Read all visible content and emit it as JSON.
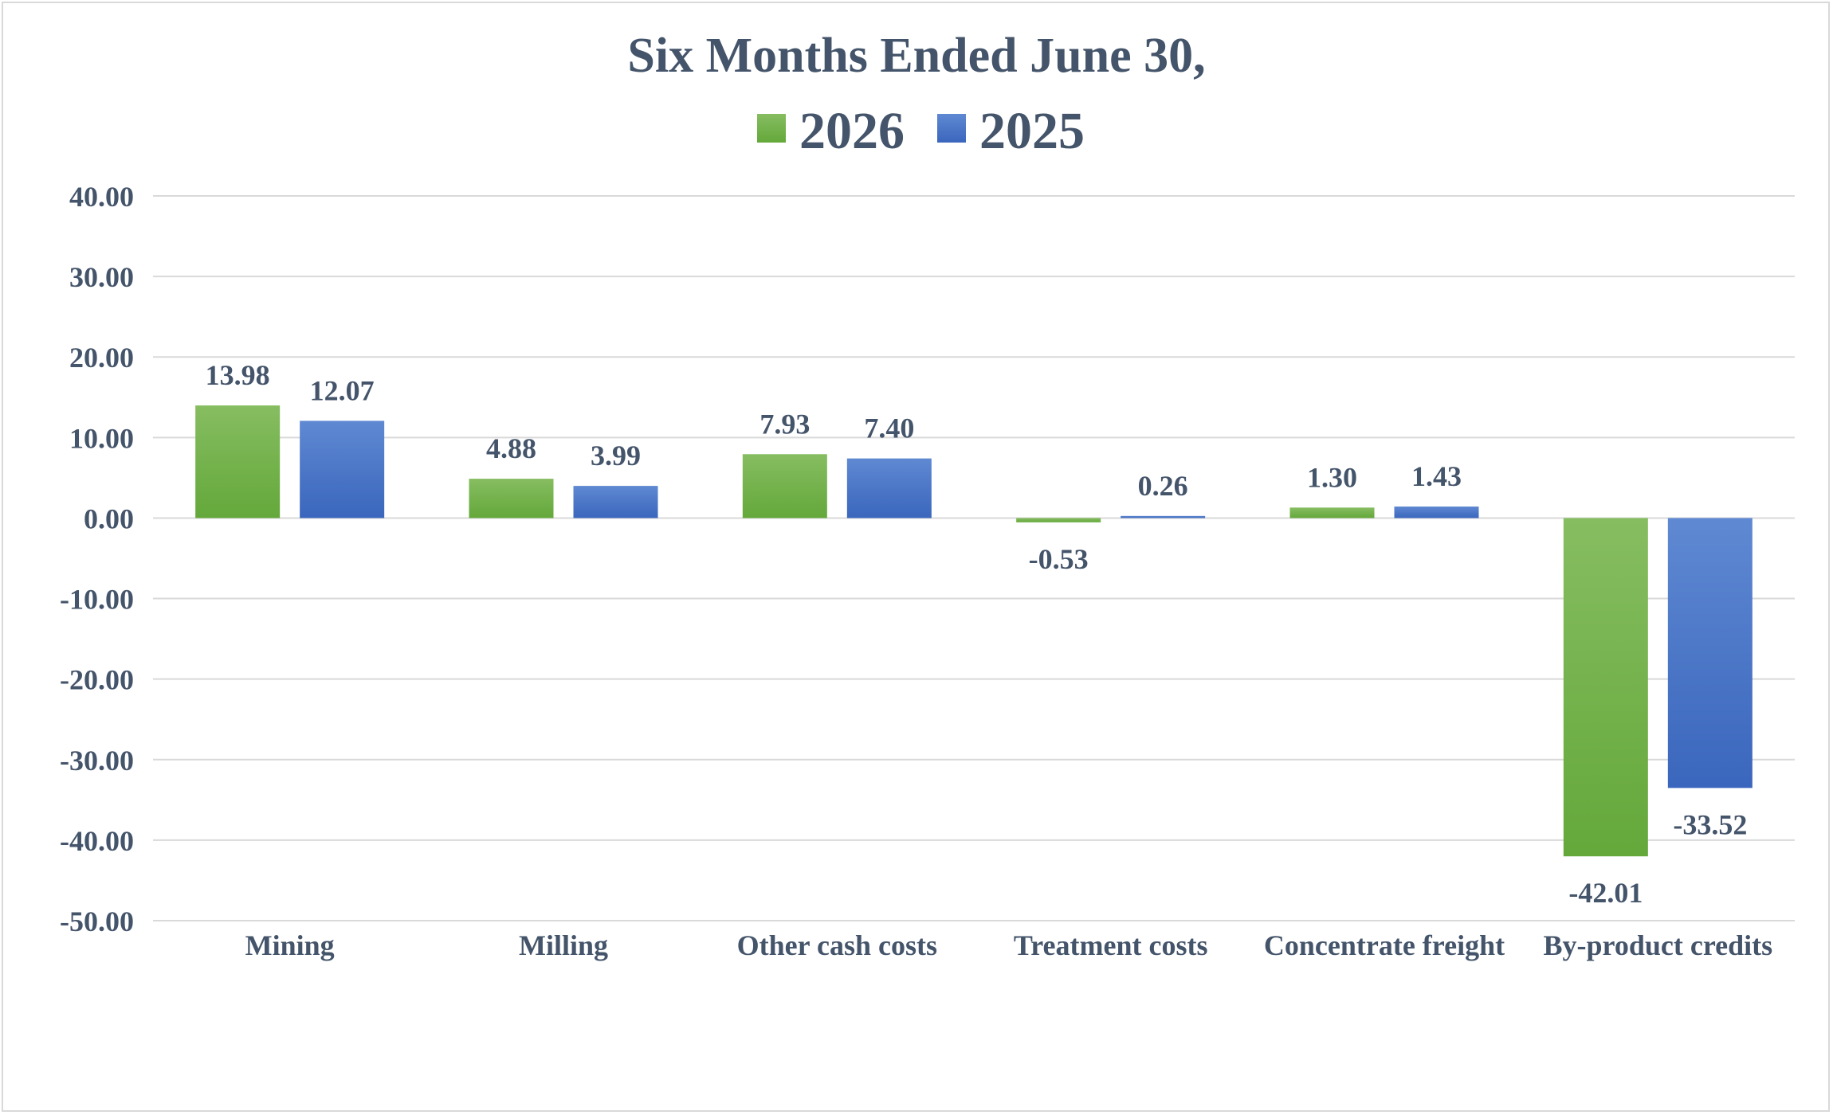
{
  "chart_data": {
    "type": "bar",
    "title": "Six Months Ended June 30,",
    "categories": [
      "Mining",
      "Milling",
      "Other cash costs",
      "Treatment costs",
      "Concentrate freight",
      "By-product credits"
    ],
    "series": [
      {
        "name": "2026",
        "values": [
          13.98,
          4.88,
          7.93,
          -0.53,
          1.3,
          -42.01
        ],
        "color": "#70ad47"
      },
      {
        "name": "2025",
        "values": [
          12.07,
          3.99,
          7.4,
          0.26,
          1.43,
          -33.52
        ],
        "color": "#4472c4"
      }
    ],
    "data_labels": [
      [
        "13.98",
        "4.88",
        "7.93",
        "-0.53",
        "1.30",
        "-42.01"
      ],
      [
        "12.07",
        "3.99",
        "7.40",
        "0.26",
        "1.43",
        "-33.52"
      ]
    ],
    "ylim": [
      -50,
      40
    ],
    "y_ticks": [
      40,
      30,
      20,
      10,
      0,
      -10,
      -20,
      -30,
      -40,
      -50
    ],
    "y_tick_labels": [
      "40.00",
      "30.00",
      "20.00",
      "10.00",
      "0.00",
      "-10.00",
      "-20.00",
      "-30.00",
      "-40.00",
      "-50.00"
    ],
    "legend_position": "top",
    "grid": true
  }
}
